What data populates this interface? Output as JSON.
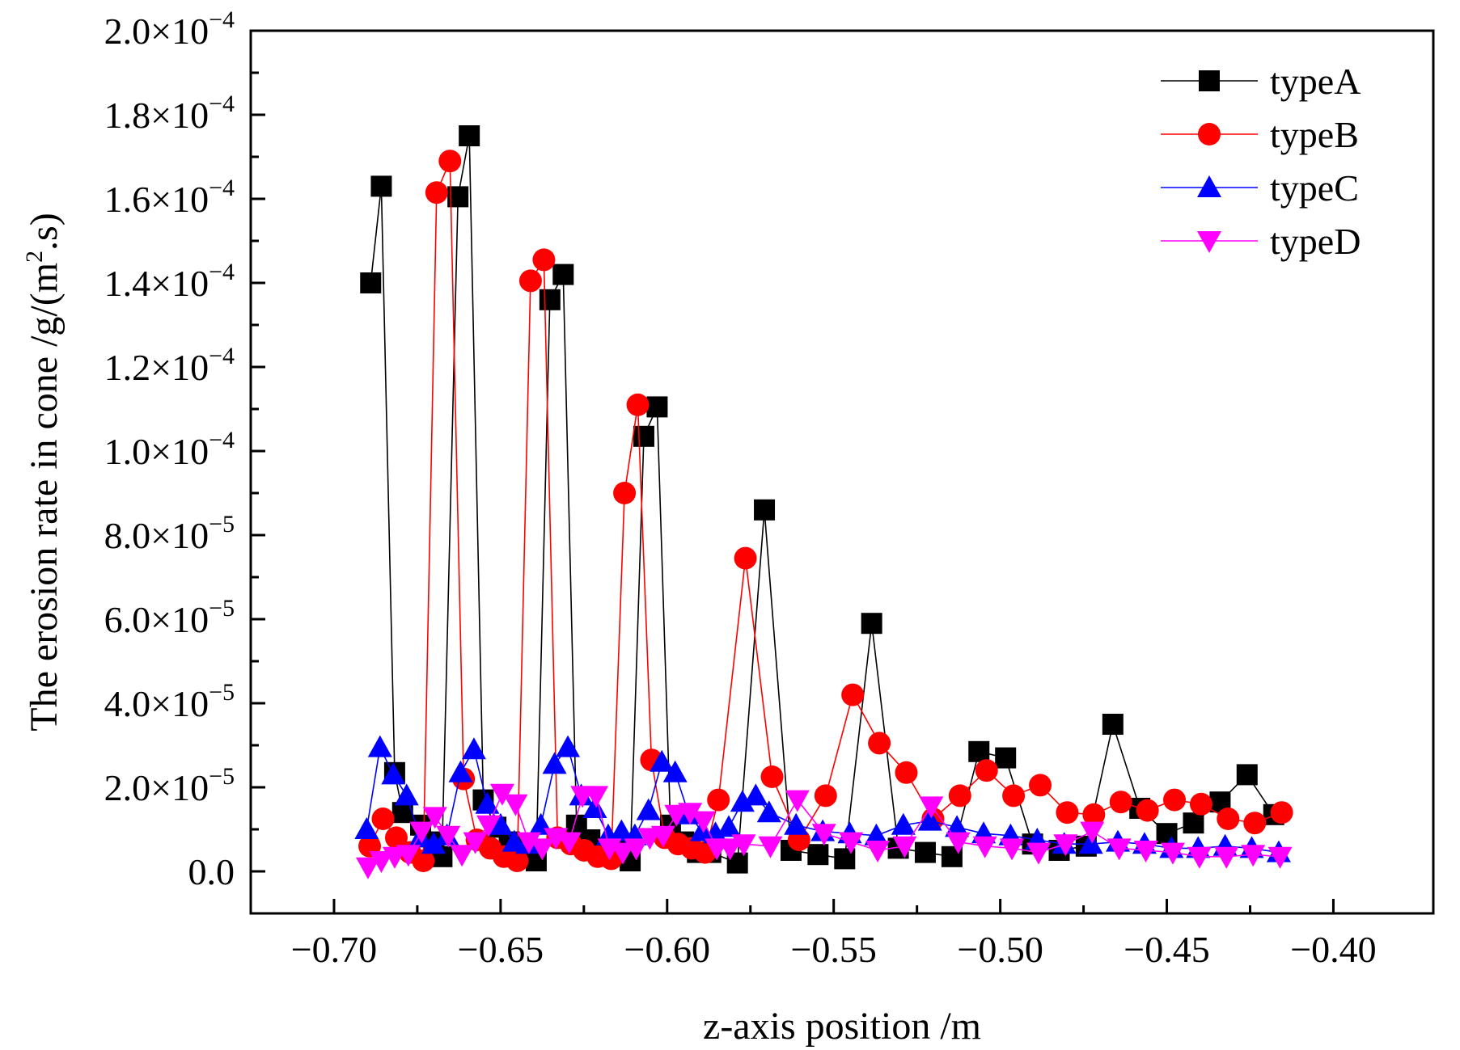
{
  "chart_data": {
    "type": "line",
    "title": "",
    "xlabel": "z-axis position /m",
    "ylabel": "The erosion rate in cone /g/(m².s)",
    "ylabel_main": "The erosion rate in cone /g/(m",
    "ylabel_sup": "2",
    "ylabel_tail": ".s)",
    "xlim": [
      -0.725,
      -0.37
    ],
    "ylim": [
      -1e-05,
      0.0002
    ],
    "x_ticks": [
      -0.7,
      -0.65,
      -0.6,
      -0.55,
      -0.5,
      -0.45,
      -0.4
    ],
    "x_tick_labels": [
      "−0.70",
      "−0.65",
      "−0.60",
      "−0.55",
      "−0.50",
      "−0.45",
      "−0.40"
    ],
    "y_ticks": [
      {
        "value": 0,
        "mant": "0.0",
        "exp": ""
      },
      {
        "value": 2e-05,
        "mant": "2.0×10",
        "exp": "−5"
      },
      {
        "value": 4e-05,
        "mant": "4.0×10",
        "exp": "−5"
      },
      {
        "value": 6e-05,
        "mant": "6.0×10",
        "exp": "−5"
      },
      {
        "value": 8e-05,
        "mant": "8.0×10",
        "exp": "−5"
      },
      {
        "value": 0.0001,
        "mant": "1.0×10",
        "exp": "−4"
      },
      {
        "value": 0.00012,
        "mant": "1.2×10",
        "exp": "−4"
      },
      {
        "value": 0.00014,
        "mant": "1.4×10",
        "exp": "−4"
      },
      {
        "value": 0.00016,
        "mant": "1.6×10",
        "exp": "−4"
      },
      {
        "value": 0.00018,
        "mant": "1.8×10",
        "exp": "−4"
      },
      {
        "value": 0.0002,
        "mant": "2.0×10",
        "exp": "−4"
      }
    ],
    "grid": false,
    "legend_position": "top-right",
    "series": [
      {
        "name": "typeA",
        "color": "#000000",
        "marker": "square",
        "points": [
          [
            -0.689,
            0.00014
          ],
          [
            -0.6858,
            0.000163
          ],
          [
            -0.6818,
            2.35e-05
          ],
          [
            -0.6794,
            1.4e-05
          ],
          [
            -0.674,
            1.1e-05
          ],
          [
            -0.67,
            7e-06
          ],
          [
            -0.6676,
            3.5e-06
          ],
          [
            -0.6628,
            0.0001605
          ],
          [
            -0.6594,
            0.000175
          ],
          [
            -0.6552,
            1.7e-05
          ],
          [
            -0.6514,
            1.05e-05
          ],
          [
            -0.6474,
            7e-06
          ],
          [
            -0.6433,
            6.5e-06
          ],
          [
            -0.6393,
            2.5e-06
          ],
          [
            -0.6352,
            0.000136
          ],
          [
            -0.6312,
            0.000142
          ],
          [
            -0.6272,
            1.1e-05
          ],
          [
            -0.6232,
            7.5e-06
          ],
          [
            -0.6191,
            4.5e-06
          ],
          [
            -0.6151,
            5.5e-06
          ],
          [
            -0.6111,
            2.5e-06
          ],
          [
            -0.607,
            0.0001035
          ],
          [
            -0.603,
            0.0001105
          ],
          [
            -0.599,
            1.1e-05
          ],
          [
            -0.595,
            7e-06
          ],
          [
            -0.5909,
            4.5e-06
          ],
          [
            -0.5869,
            4.5e-06
          ],
          [
            -0.5789,
            2e-06
          ],
          [
            -0.5708,
            8.6e-05
          ],
          [
            -0.5628,
            5e-06
          ],
          [
            -0.5547,
            4e-06
          ],
          [
            -0.5467,
            3e-06
          ],
          [
            -0.5386,
            5.9e-05
          ],
          [
            -0.5306,
            5.5e-06
          ],
          [
            -0.5225,
            4.5e-06
          ],
          [
            -0.5145,
            3.5e-06
          ],
          [
            -0.5064,
            2.85e-05
          ],
          [
            -0.4984,
            2.7e-05
          ],
          [
            -0.4903,
            6.5e-06
          ],
          [
            -0.4823,
            5e-06
          ],
          [
            -0.4742,
            6e-06
          ],
          [
            -0.4662,
            3.5e-05
          ],
          [
            -0.4581,
            1.5e-05
          ],
          [
            -0.45,
            9e-06
          ],
          [
            -0.442,
            1.15e-05
          ],
          [
            -0.434,
            1.65e-05
          ],
          [
            -0.4259,
            2.3e-05
          ],
          [
            -0.4179,
            1.35e-05
          ]
        ]
      },
      {
        "name": "typeB",
        "color": "#ff0000",
        "marker": "circle",
        "points": [
          [
            -0.6893,
            6e-06
          ],
          [
            -0.6853,
            1.25e-05
          ],
          [
            -0.6813,
            8e-06
          ],
          [
            -0.6772,
            4.5e-06
          ],
          [
            -0.6732,
            2.5e-06
          ],
          [
            -0.6692,
            0.0001615
          ],
          [
            -0.6652,
            0.000169
          ],
          [
            -0.6611,
            2.2e-05
          ],
          [
            -0.6571,
            7.5e-06
          ],
          [
            -0.6531,
            5.5e-06
          ],
          [
            -0.649,
            3.5e-06
          ],
          [
            -0.645,
            2.5e-06
          ],
          [
            -0.641,
            0.0001405
          ],
          [
            -0.637,
            0.0001455
          ],
          [
            -0.6329,
            8e-06
          ],
          [
            -0.6289,
            6.5e-06
          ],
          [
            -0.6249,
            5e-06
          ],
          [
            -0.6208,
            3.5e-06
          ],
          [
            -0.6168,
            3e-06
          ],
          [
            -0.6128,
            9e-05
          ],
          [
            -0.6088,
            0.000111
          ],
          [
            -0.6047,
            2.65e-05
          ],
          [
            -0.6007,
            8e-06
          ],
          [
            -0.5967,
            6.5e-06
          ],
          [
            -0.5926,
            5.5e-06
          ],
          [
            -0.5886,
            4.5e-06
          ],
          [
            -0.5846,
            1.7e-05
          ],
          [
            -0.5765,
            7.45e-05
          ],
          [
            -0.5685,
            2.25e-05
          ],
          [
            -0.5604,
            7.5e-06
          ],
          [
            -0.5524,
            1.8e-05
          ],
          [
            -0.5443,
            4.2e-05
          ],
          [
            -0.5363,
            3.05e-05
          ],
          [
            -0.5282,
            2.35e-05
          ],
          [
            -0.5202,
            1.25e-05
          ],
          [
            -0.5121,
            1.8e-05
          ],
          [
            -0.5041,
            2.4e-05
          ],
          [
            -0.496,
            1.8e-05
          ],
          [
            -0.488,
            2.05e-05
          ],
          [
            -0.4799,
            1.4e-05
          ],
          [
            -0.4719,
            1.35e-05
          ],
          [
            -0.4638,
            1.65e-05
          ],
          [
            -0.4558,
            1.45e-05
          ],
          [
            -0.4477,
            1.7e-05
          ],
          [
            -0.4397,
            1.6e-05
          ],
          [
            -0.4316,
            1.25e-05
          ],
          [
            -0.4236,
            1.15e-05
          ],
          [
            -0.4155,
            1.4e-05
          ]
        ]
      },
      {
        "name": "typeC",
        "color": "#0000ff",
        "marker": "triangle-up",
        "points": [
          [
            -0.6902,
            1e-05
          ],
          [
            -0.6862,
            2.95e-05
          ],
          [
            -0.6822,
            2.3e-05
          ],
          [
            -0.6782,
            1.8e-05
          ],
          [
            -0.6741,
            8e-06
          ],
          [
            -0.6701,
            6.5e-06
          ],
          [
            -0.6661,
            8.5e-06
          ],
          [
            -0.662,
            2.35e-05
          ],
          [
            -0.658,
            2.9e-05
          ],
          [
            -0.654,
            1.6e-05
          ],
          [
            -0.65,
            1.1e-05
          ],
          [
            -0.6459,
            7e-06
          ],
          [
            -0.6419,
            6.5e-06
          ],
          [
            -0.6379,
            1.1e-05
          ],
          [
            -0.6338,
            2.55e-05
          ],
          [
            -0.6298,
            2.95e-05
          ],
          [
            -0.6258,
            1.8e-05
          ],
          [
            -0.6217,
            1.5e-05
          ],
          [
            -0.6177,
            8.5e-06
          ],
          [
            -0.6137,
            9.5e-06
          ],
          [
            -0.6097,
            8.5e-06
          ],
          [
            -0.6056,
            1.45e-05
          ],
          [
            -0.6016,
            2.6e-05
          ],
          [
            -0.5976,
            2.35e-05
          ],
          [
            -0.5935,
            1.35e-05
          ],
          [
            -0.5895,
            9.5e-06
          ],
          [
            -0.5855,
            9e-06
          ],
          [
            -0.5815,
            1.05e-05
          ],
          [
            -0.5774,
            1.65e-05
          ],
          [
            -0.5734,
            1.8e-05
          ],
          [
            -0.5694,
            1.4e-05
          ],
          [
            -0.5613,
            1.1e-05
          ],
          [
            -0.5533,
            9.5e-06
          ],
          [
            -0.5452,
            9e-06
          ],
          [
            -0.5372,
            8.5e-06
          ],
          [
            -0.5291,
            1.1e-05
          ],
          [
            -0.5211,
            1.2e-05
          ],
          [
            -0.513,
            1.05e-05
          ],
          [
            -0.505,
            9e-06
          ],
          [
            -0.4969,
            8.5e-06
          ],
          [
            -0.4889,
            7.5e-06
          ],
          [
            -0.4808,
            6.5e-06
          ],
          [
            -0.4728,
            6.5e-06
          ],
          [
            -0.4647,
            7e-06
          ],
          [
            -0.4567,
            6.5e-06
          ],
          [
            -0.4486,
            5.5e-06
          ],
          [
            -0.4406,
            5.5e-06
          ],
          [
            -0.4325,
            6e-06
          ],
          [
            -0.4245,
            5.5e-06
          ],
          [
            -0.4164,
            4.5e-06
          ]
        ]
      },
      {
        "name": "typeD",
        "color": "#ff00ff",
        "marker": "triangle-down",
        "points": [
          [
            -0.6898,
            1e-06
          ],
          [
            -0.6858,
            2.5e-06
          ],
          [
            -0.6818,
            3.5e-06
          ],
          [
            -0.6777,
            4e-06
          ],
          [
            -0.6737,
            9.5e-06
          ],
          [
            -0.6697,
            1.3e-05
          ],
          [
            -0.6657,
            8.5e-06
          ],
          [
            -0.6616,
            4e-06
          ],
          [
            -0.6576,
            7e-06
          ],
          [
            -0.6536,
            1.1e-05
          ],
          [
            -0.6495,
            1.85e-05
          ],
          [
            -0.6455,
            1.6e-05
          ],
          [
            -0.6415,
            7e-06
          ],
          [
            -0.6375,
            5.5e-06
          ],
          [
            -0.6334,
            8e-06
          ],
          [
            -0.6294,
            7e-06
          ],
          [
            -0.6254,
            1.8e-05
          ],
          [
            -0.6213,
            1.8e-05
          ],
          [
            -0.6173,
            5.5e-06
          ],
          [
            -0.6133,
            4.5e-06
          ],
          [
            -0.6093,
            5.5e-06
          ],
          [
            -0.6052,
            8e-06
          ],
          [
            -0.6012,
            8.5e-06
          ],
          [
            -0.5972,
            1.35e-05
          ],
          [
            -0.5931,
            1.4e-05
          ],
          [
            -0.5891,
            1.2e-05
          ],
          [
            -0.5851,
            5.5e-06
          ],
          [
            -0.5811,
            5.5e-06
          ],
          [
            -0.577,
            6.5e-06
          ],
          [
            -0.569,
            6e-06
          ],
          [
            -0.5609,
            1.7e-05
          ],
          [
            -0.5529,
            9e-06
          ],
          [
            -0.5448,
            7e-06
          ],
          [
            -0.5368,
            5e-06
          ],
          [
            -0.5287,
            6e-06
          ],
          [
            -0.5207,
            1.55e-05
          ],
          [
            -0.5126,
            7e-06
          ],
          [
            -0.5046,
            6e-06
          ],
          [
            -0.4965,
            5.5e-06
          ],
          [
            -0.4885,
            4.5e-06
          ],
          [
            -0.4804,
            6.5e-06
          ],
          [
            -0.4724,
            9.5e-06
          ],
          [
            -0.4643,
            5.5e-06
          ],
          [
            -0.4563,
            5e-06
          ],
          [
            -0.4482,
            4.5e-06
          ],
          [
            -0.4402,
            3.5e-06
          ],
          [
            -0.4321,
            3.5e-06
          ],
          [
            -0.4241,
            4e-06
          ],
          [
            -0.416,
            3.5e-06
          ]
        ]
      }
    ]
  }
}
